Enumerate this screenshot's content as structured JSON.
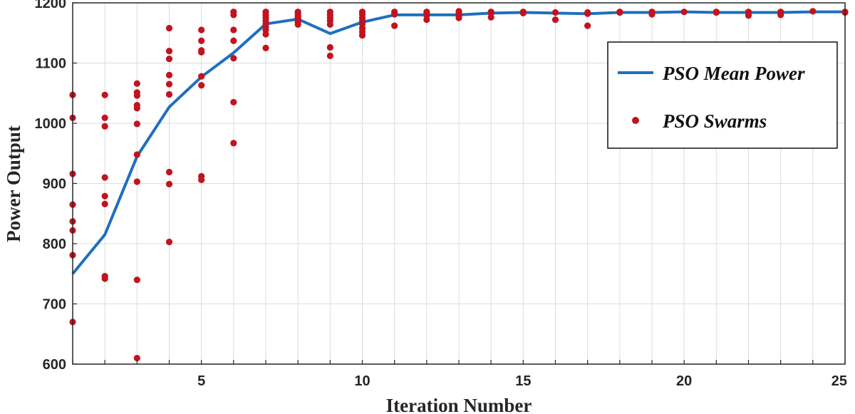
{
  "chart_data": {
    "type": "line+scatter",
    "xlabel": "Iteration Number",
    "ylabel": "Power Output",
    "xlim": [
      1,
      25
    ],
    "ylim": [
      600,
      1200
    ],
    "xticks": [
      5,
      10,
      15,
      20,
      25
    ],
    "yticks": [
      600,
      700,
      800,
      900,
      1000,
      1100,
      1200
    ],
    "grid": true,
    "legend_position": "top-right",
    "colors": {
      "line": "#1f6fbf",
      "markers": "#c0141f",
      "grid": "#dcdcdc",
      "axis": "#262626"
    },
    "series": [
      {
        "name": "PSO Mean Power",
        "kind": "line",
        "x": [
          1,
          2,
          3,
          4,
          5,
          6,
          7,
          8,
          9,
          10,
          11,
          12,
          13,
          14,
          15,
          16,
          17,
          18,
          19,
          20,
          21,
          22,
          23,
          24,
          25
        ],
        "y": [
          750,
          815,
          945,
          1027,
          1077,
          1117,
          1165,
          1173,
          1149,
          1168,
          1180,
          1180,
          1180,
          1183,
          1184,
          1183,
          1182,
          1184,
          1184,
          1185,
          1184,
          1184,
          1184,
          1185,
          1185
        ]
      },
      {
        "name": "PSO Swarms",
        "kind": "scatter",
        "points": [
          [
            1,
            1047
          ],
          [
            1,
            1009
          ],
          [
            1,
            916
          ],
          [
            1,
            865
          ],
          [
            1,
            837
          ],
          [
            1,
            822
          ],
          [
            1,
            781
          ],
          [
            1,
            670
          ],
          [
            2,
            1047
          ],
          [
            2,
            1009
          ],
          [
            2,
            995
          ],
          [
            2,
            910
          ],
          [
            2,
            879
          ],
          [
            2,
            866
          ],
          [
            2,
            746
          ],
          [
            2,
            742
          ],
          [
            3,
            1066
          ],
          [
            3,
            1051
          ],
          [
            3,
            1046
          ],
          [
            3,
            1030
          ],
          [
            3,
            1025
          ],
          [
            3,
            999
          ],
          [
            3,
            948
          ],
          [
            3,
            903
          ],
          [
            3,
            740
          ],
          [
            3,
            610
          ],
          [
            4,
            1158
          ],
          [
            4,
            1120
          ],
          [
            4,
            1107
          ],
          [
            4,
            1080
          ],
          [
            4,
            1065
          ],
          [
            4,
            1048
          ],
          [
            4,
            919
          ],
          [
            4,
            899
          ],
          [
            4,
            803
          ],
          [
            5,
            1155
          ],
          [
            5,
            1137
          ],
          [
            5,
            1121
          ],
          [
            5,
            1118
          ],
          [
            5,
            1078
          ],
          [
            5,
            1063
          ],
          [
            5,
            912
          ],
          [
            5,
            906
          ],
          [
            6,
            1185
          ],
          [
            6,
            1180
          ],
          [
            6,
            1155
          ],
          [
            6,
            1137
          ],
          [
            6,
            1108
          ],
          [
            6,
            1035
          ],
          [
            6,
            967
          ],
          [
            7,
            1185
          ],
          [
            7,
            1180
          ],
          [
            7,
            1175
          ],
          [
            7,
            1170
          ],
          [
            7,
            1165
          ],
          [
            7,
            1160
          ],
          [
            7,
            1155
          ],
          [
            7,
            1148
          ],
          [
            7,
            1125
          ],
          [
            8,
            1185
          ],
          [
            8,
            1182
          ],
          [
            8,
            1178
          ],
          [
            8,
            1175
          ],
          [
            8,
            1172
          ],
          [
            8,
            1168
          ],
          [
            8,
            1164
          ],
          [
            9,
            1185
          ],
          [
            9,
            1180
          ],
          [
            9,
            1175
          ],
          [
            9,
            1170
          ],
          [
            9,
            1164
          ],
          [
            9,
            1126
          ],
          [
            9,
            1112
          ],
          [
            10,
            1185
          ],
          [
            10,
            1181
          ],
          [
            10,
            1175
          ],
          [
            10,
            1170
          ],
          [
            10,
            1165
          ],
          [
            10,
            1158
          ],
          [
            10,
            1152
          ],
          [
            10,
            1146
          ],
          [
            11,
            1185
          ],
          [
            11,
            1183
          ],
          [
            11,
            1181
          ],
          [
            11,
            1162
          ],
          [
            12,
            1185
          ],
          [
            12,
            1183
          ],
          [
            12,
            1179
          ],
          [
            12,
            1172
          ],
          [
            13,
            1186
          ],
          [
            13,
            1183
          ],
          [
            13,
            1179
          ],
          [
            13,
            1175
          ],
          [
            14,
            1185
          ],
          [
            14,
            1183
          ],
          [
            14,
            1176
          ],
          [
            15,
            1185
          ],
          [
            15,
            1183
          ],
          [
            16,
            1184
          ],
          [
            16,
            1172
          ],
          [
            17,
            1184
          ],
          [
            17,
            1182
          ],
          [
            17,
            1162
          ],
          [
            18,
            1185
          ],
          [
            18,
            1184
          ],
          [
            19,
            1185
          ],
          [
            19,
            1183
          ],
          [
            19,
            1181
          ],
          [
            20,
            1185
          ],
          [
            21,
            1185
          ],
          [
            21,
            1184
          ],
          [
            22,
            1185
          ],
          [
            22,
            1183
          ],
          [
            22,
            1179
          ],
          [
            23,
            1185
          ],
          [
            23,
            1183
          ],
          [
            23,
            1180
          ],
          [
            24,
            1186
          ],
          [
            25,
            1185
          ],
          [
            25,
            1184
          ]
        ]
      }
    ]
  }
}
